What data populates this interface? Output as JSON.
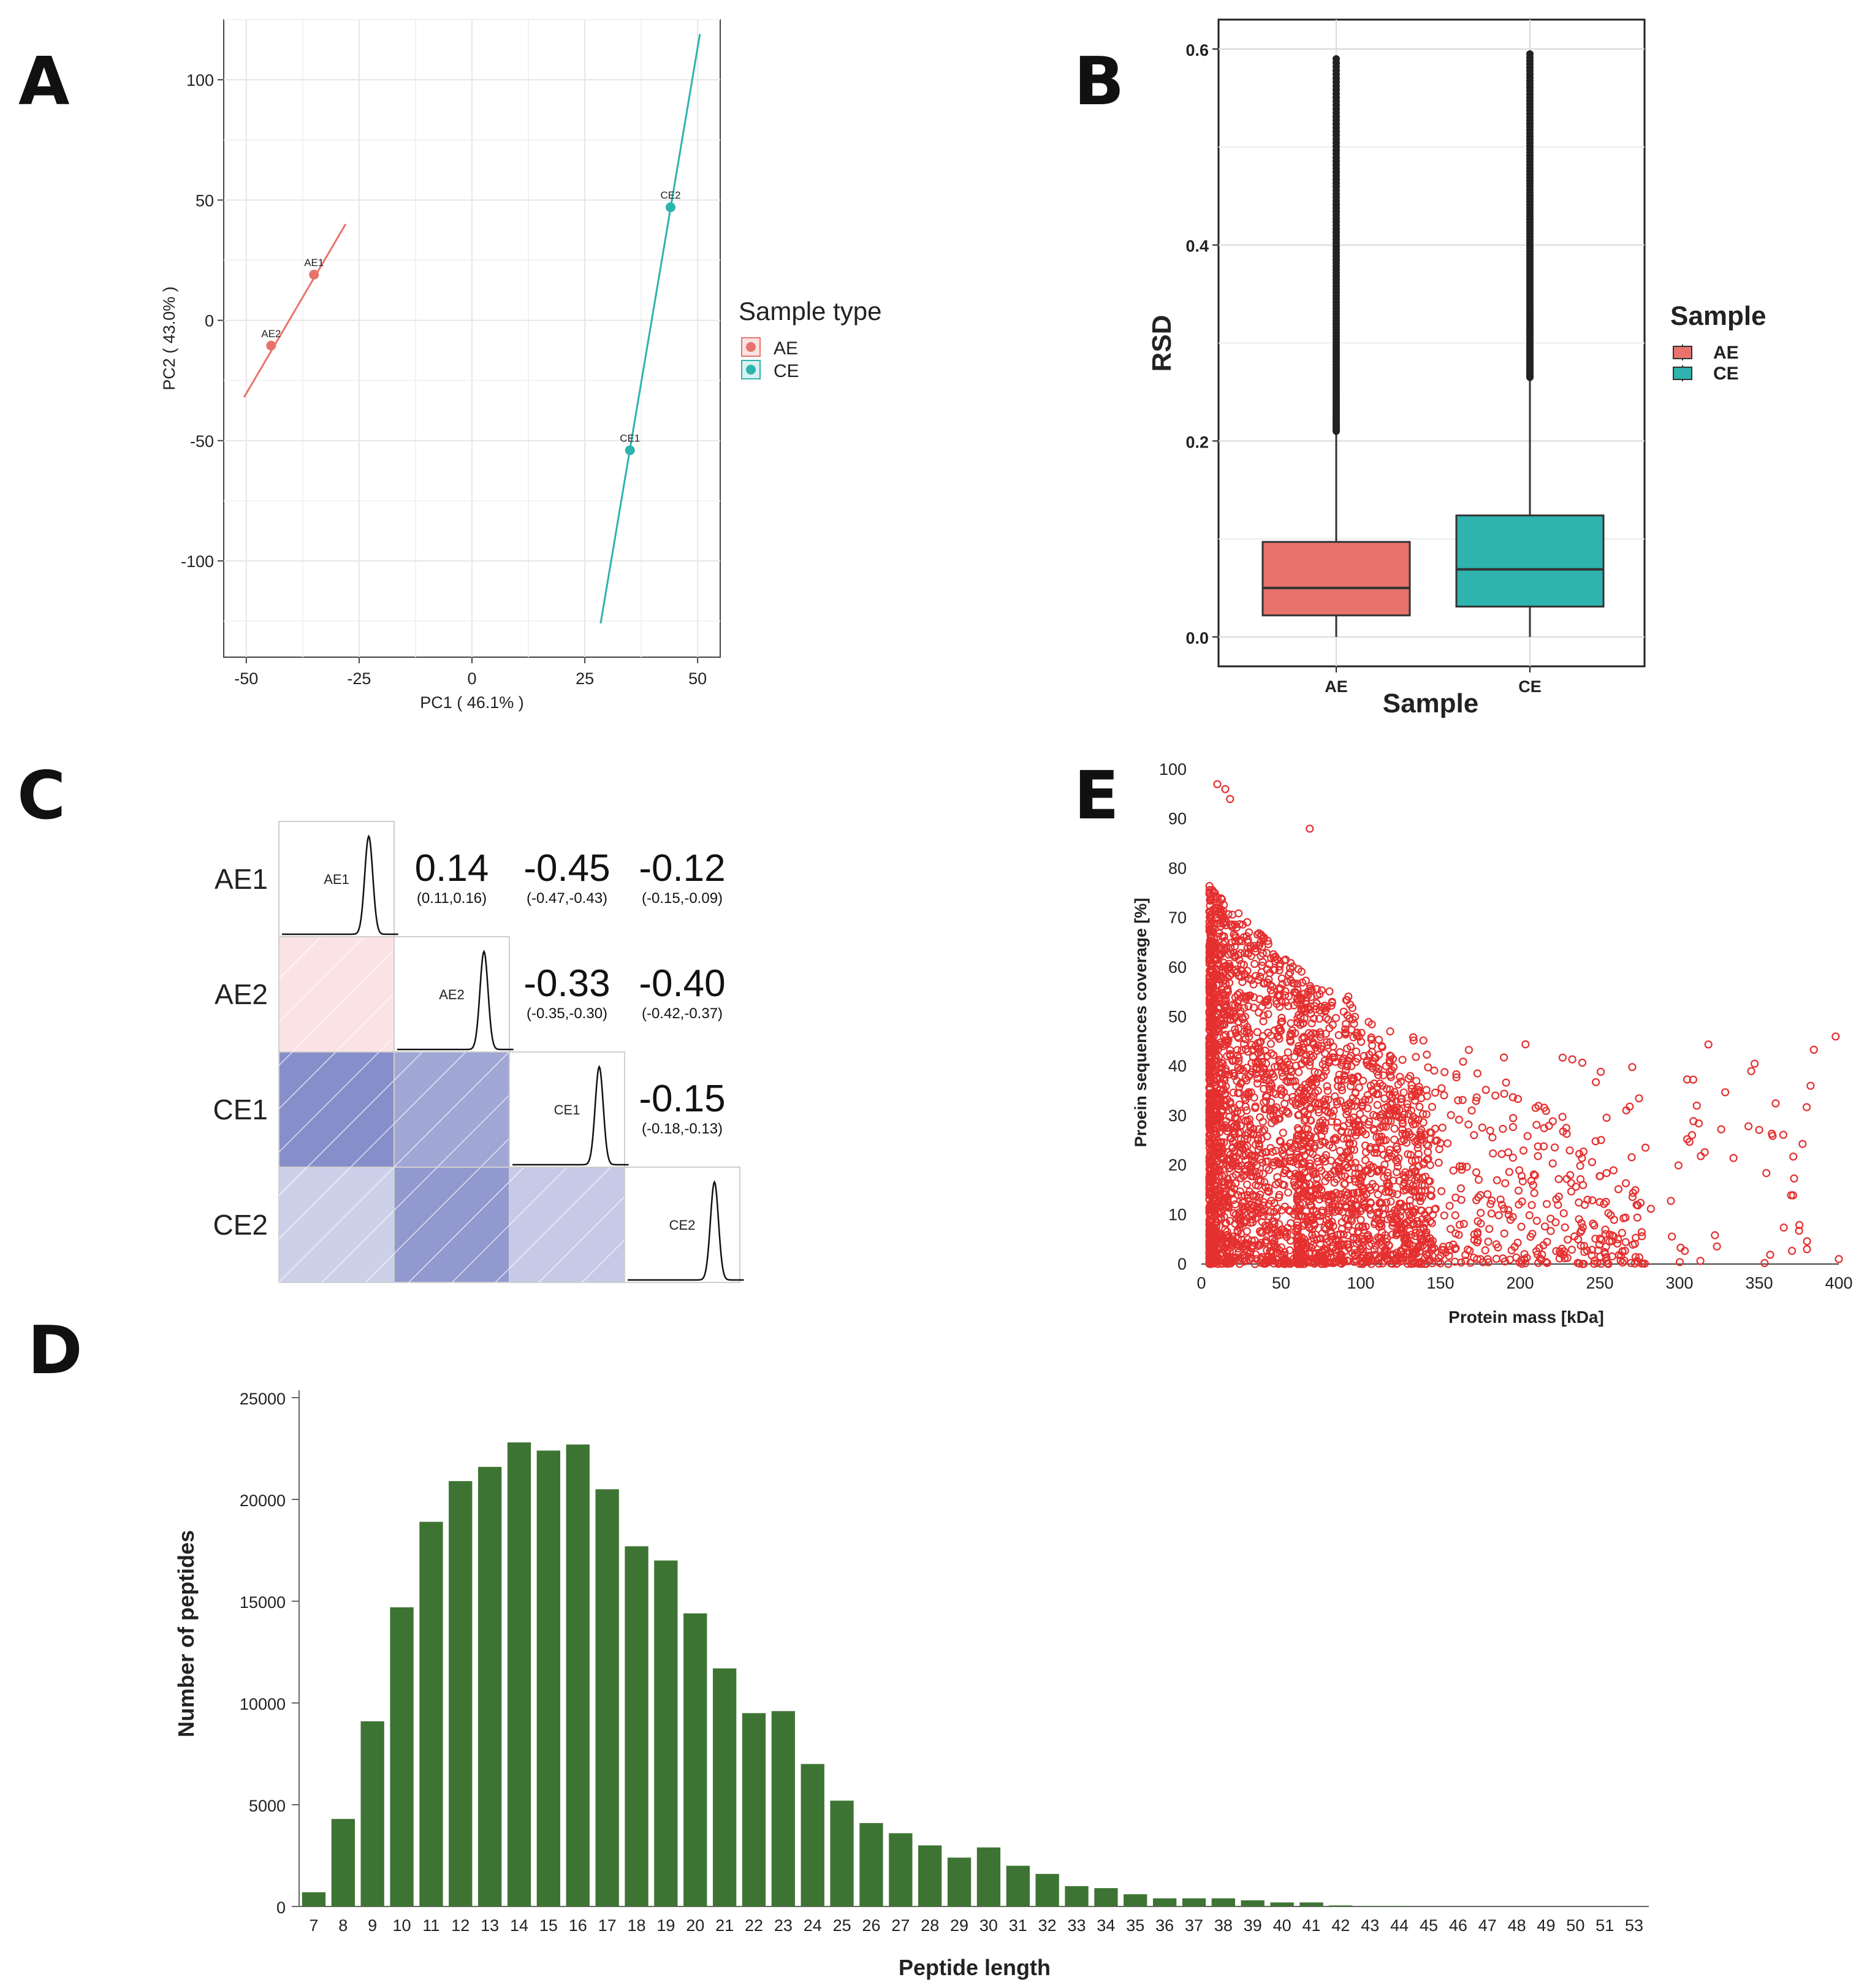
{
  "panels": {
    "a": "A",
    "b": "B",
    "c": "C",
    "d": "D",
    "e": "E"
  },
  "chart_data": [
    {
      "panel": "A",
      "type": "scatter",
      "xlabel": "PC1 ( 46.1% )",
      "ylabel": "PC2 ( 43.0% )",
      "xlim": [
        -55,
        55
      ],
      "ylim": [
        -140,
        125
      ],
      "xticks": [
        -50,
        -25,
        0,
        25,
        50
      ],
      "yticks": [
        -100,
        -50,
        0,
        50,
        100
      ],
      "grid": true,
      "legend": {
        "title": "Sample type",
        "position": "right",
        "items": [
          {
            "label": "AE",
            "color": "#E8736C"
          },
          {
            "label": "CE",
            "color": "#2EB3AE"
          }
        ]
      },
      "series": [
        {
          "name": "AE",
          "color": "#E8736C",
          "points": [
            {
              "label": "AE1",
              "x": -35,
              "y": 19
            },
            {
              "label": "AE2",
              "x": -44.5,
              "y": -10.5
            }
          ],
          "fit_line": [
            [
              -50.5,
              -32
            ],
            [
              -28,
              40
            ]
          ]
        },
        {
          "name": "CE",
          "color": "#2EB3AE",
          "points": [
            {
              "label": "CE2",
              "x": 44,
              "y": 47
            },
            {
              "label": "CE1",
              "x": 35,
              "y": -54
            }
          ],
          "fit_line": [
            [
              28.5,
              -126
            ],
            [
              50.5,
              119
            ]
          ]
        }
      ]
    },
    {
      "panel": "B",
      "type": "box",
      "xlabel": "Sample",
      "ylabel": "RSD",
      "ylim": [
        -0.03,
        0.63
      ],
      "yticks": [
        0.0,
        0.2,
        0.4,
        0.6
      ],
      "ytick_labels": [
        "0.0",
        "0.2",
        "0.4",
        "0.6"
      ],
      "legend": {
        "title": "Sample",
        "position": "right",
        "items": [
          {
            "label": "AE",
            "color": "#E8736C"
          },
          {
            "label": "CE",
            "color": "#2EB3AE"
          }
        ]
      },
      "boxes": [
        {
          "label": "AE",
          "color": "#E8736C",
          "q1": 0.022,
          "median": 0.05,
          "q3": 0.097,
          "whisker_low": 0.0,
          "whisker_high": 0.21,
          "outlier_range": [
            0.21,
            0.59
          ]
        },
        {
          "label": "CE",
          "color": "#2EB3AE",
          "q1": 0.031,
          "median": 0.069,
          "q3": 0.124,
          "whisker_low": 0.0,
          "whisker_high": 0.265,
          "outlier_range": [
            0.265,
            0.595
          ]
        }
      ]
    },
    {
      "panel": "C",
      "type": "correlation-matrix",
      "labels": [
        "AE1",
        "AE2",
        "CE1",
        "CE2"
      ],
      "upper": [
        {
          "row": 0,
          "col": 1,
          "value": "0.14",
          "ci": "(0.11,0.16)"
        },
        {
          "row": 0,
          "col": 2,
          "value": "-0.45",
          "ci": "(-0.47,-0.43)"
        },
        {
          "row": 0,
          "col": 3,
          "value": "-0.12",
          "ci": "(-0.15,-0.09)"
        },
        {
          "row": 1,
          "col": 2,
          "value": "-0.33",
          "ci": "(-0.35,-0.30)"
        },
        {
          "row": 1,
          "col": 3,
          "value": "-0.40",
          "ci": "(-0.42,-0.37)"
        },
        {
          "row": 2,
          "col": 3,
          "value": "-0.15",
          "ci": "(-0.18,-0.13)"
        }
      ],
      "lower": [
        {
          "row": 1,
          "col": 0,
          "r": 0.14
        },
        {
          "row": 2,
          "col": 0,
          "r": -0.45
        },
        {
          "row": 2,
          "col": 1,
          "r": -0.33
        },
        {
          "row": 3,
          "col": 0,
          "r": -0.12
        },
        {
          "row": 3,
          "col": 1,
          "r": -0.4
        },
        {
          "row": 3,
          "col": 2,
          "r": -0.15
        }
      ],
      "colors": {
        "positive": "#FBE3E5",
        "negative": "#7D86C6"
      }
    },
    {
      "panel": "D",
      "type": "bar",
      "xlabel": "Peptide length",
      "ylabel": "Number of peptides",
      "ylim": [
        0,
        25000
      ],
      "yticks": [
        0,
        5000,
        10000,
        15000,
        20000,
        25000
      ],
      "color": "#3E7433",
      "categories": [
        "7",
        "8",
        "9",
        "10",
        "11",
        "12",
        "13",
        "14",
        "15",
        "16",
        "17",
        "18",
        "19",
        "20",
        "21",
        "22",
        "23",
        "24",
        "25",
        "26",
        "27",
        "28",
        "29",
        "30",
        "31",
        "32",
        "33",
        "34",
        "35",
        "36",
        "37",
        "38",
        "39",
        "40",
        "41",
        "42",
        "43",
        "44",
        "45",
        "46",
        "47",
        "48",
        "49",
        "50",
        "51",
        "53"
      ],
      "values": [
        700,
        4300,
        9100,
        14700,
        18900,
        20900,
        21600,
        22800,
        22400,
        22700,
        20500,
        17700,
        17000,
        14400,
        11700,
        9500,
        9600,
        7000,
        5200,
        4100,
        3600,
        3000,
        2400,
        2900,
        2000,
        1600,
        1000,
        900,
        600,
        400,
        400,
        400,
        300,
        200,
        200,
        50,
        30,
        20,
        10,
        10,
        10,
        5,
        5,
        5,
        5,
        5
      ]
    },
    {
      "panel": "E",
      "type": "scatter",
      "xlabel": "Protein mass [kDa]",
      "ylabel": "Proein sequences coverage [%]",
      "xlim": [
        0,
        400
      ],
      "ylim": [
        0,
        100
      ],
      "xticks": [
        0,
        50,
        100,
        150,
        200,
        250,
        300,
        350,
        400
      ],
      "yticks": [
        0,
        10,
        20,
        30,
        40,
        50,
        60,
        70,
        80,
        90,
        100
      ],
      "color": "#E53030",
      "marker": "open-circle",
      "notable_points": [
        [
          10,
          97
        ],
        [
          15,
          96
        ],
        [
          18,
          94
        ],
        [
          68,
          88
        ],
        [
          398,
          46
        ],
        [
          400,
          1
        ],
        [
          380,
          3
        ],
        [
          345,
          39
        ]
      ]
    }
  ]
}
